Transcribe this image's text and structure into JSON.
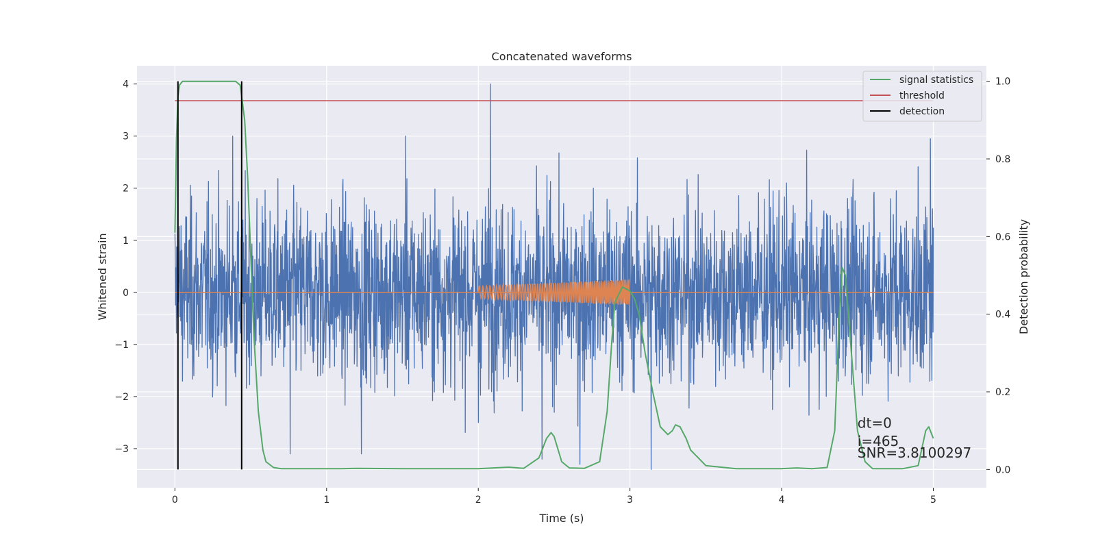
{
  "chart_data": {
    "type": "line",
    "title": "Concatenated waveforms",
    "xlabel": "Time (s)",
    "ylabel": "Whitened strain",
    "ylabel_right": "Detection probability",
    "xlim": [
      -0.25,
      5.35
    ],
    "ylim": [
      -3.75,
      4.35
    ],
    "ylim_right": [
      -0.047,
      1.04
    ],
    "xticks": [
      0,
      1,
      2,
      3,
      4,
      5
    ],
    "yticks": [
      -3,
      -2,
      -1,
      0,
      1,
      2,
      3,
      4
    ],
    "yticks_right": [
      0.0,
      0.2,
      0.4,
      0.6,
      0.8,
      1.0
    ],
    "ytick_labels": [
      "−3",
      "−2",
      "−1",
      "0",
      "1",
      "2",
      "3",
      "4"
    ],
    "yticks_right_labels": [
      "0.0",
      "0.2",
      "0.4",
      "0.6",
      "0.8",
      "1.0"
    ],
    "grid": true,
    "legend_position": "top-right",
    "colors": {
      "strain": "#4c72b0",
      "template": "#dd8452",
      "statistic": "#55a868",
      "threshold": "#c44e52",
      "detection": "#000000",
      "background": "#eaeaf2",
      "grid": "#ffffff"
    },
    "series": [
      {
        "name": "",
        "kind": "noise",
        "axis": "left",
        "x_range": [
          0,
          5
        ],
        "description_values": {
          "min": -3.4,
          "max": 4.0,
          "typical_amplitude": 1.0
        },
        "spikes": [
          [
            2.08,
            4.0
          ],
          [
            0.02,
            3.2
          ],
          [
            0.38,
            3.0
          ],
          [
            4.98,
            2.95
          ],
          [
            1.52,
            3.0
          ],
          [
            1.23,
            -3.1
          ],
          [
            0.76,
            -3.1
          ],
          [
            2.67,
            -3.3
          ],
          [
            3.14,
            -3.4
          ],
          [
            2.42,
            -3.2
          ],
          [
            2.0,
            -2.5
          ]
        ]
      },
      {
        "name": "",
        "kind": "chirp",
        "axis": "left",
        "x_range": [
          2,
          3
        ],
        "amplitude_start": 0.12,
        "amplitude_end": 0.25
      },
      {
        "name": "signal statistics",
        "axis": "right",
        "x": [
          0.0,
          0.01,
          0.02,
          0.03,
          0.05,
          0.1,
          0.2,
          0.3,
          0.4,
          0.43,
          0.46,
          0.48,
          0.5,
          0.52,
          0.55,
          0.58,
          0.6,
          0.65,
          0.7,
          0.8,
          1.0,
          1.1,
          1.2,
          1.5,
          2.0,
          2.2,
          2.3,
          2.4,
          2.45,
          2.48,
          2.5,
          2.55,
          2.6,
          2.7,
          2.8,
          2.85,
          2.88,
          2.9,
          2.95,
          3.0,
          3.03,
          3.06,
          3.1,
          3.15,
          3.2,
          3.25,
          3.28,
          3.3,
          3.33,
          3.37,
          3.4,
          3.5,
          3.7,
          4.0,
          4.1,
          4.2,
          4.3,
          4.35,
          4.38,
          4.4,
          4.42,
          4.45,
          4.5,
          4.55,
          4.6,
          4.7,
          4.8,
          4.9,
          4.95,
          4.97,
          5.0
        ],
        "values": [
          0.61,
          0.85,
          0.96,
          0.99,
          1.0,
          1.0,
          1.0,
          1.0,
          1.0,
          0.99,
          0.9,
          0.75,
          0.55,
          0.35,
          0.15,
          0.05,
          0.02,
          0.005,
          0.002,
          0.002,
          0.002,
          0.002,
          0.003,
          0.002,
          0.002,
          0.006,
          0.003,
          0.03,
          0.08,
          0.095,
          0.085,
          0.02,
          0.004,
          0.003,
          0.02,
          0.15,
          0.33,
          0.43,
          0.47,
          0.46,
          0.44,
          0.4,
          0.3,
          0.2,
          0.11,
          0.09,
          0.1,
          0.115,
          0.11,
          0.08,
          0.05,
          0.01,
          0.002,
          0.002,
          0.004,
          0.002,
          0.005,
          0.1,
          0.4,
          0.52,
          0.5,
          0.35,
          0.1,
          0.02,
          0.002,
          0.002,
          0.002,
          0.01,
          0.1,
          0.11,
          0.08
        ]
      },
      {
        "name": "threshold",
        "axis": "right",
        "x": [
          0,
          5
        ],
        "values": [
          0.95,
          0.95
        ]
      },
      {
        "name": "detection",
        "axis": "right",
        "vlines": [
          0.02,
          0.44
        ],
        "y_range": [
          0.0,
          1.0
        ]
      }
    ],
    "annotations": {
      "dt": "dt=0",
      "i": "i=465",
      "snr": "SNR=3.8100297"
    },
    "annotation_x": 4.5,
    "annotation_y": [
      -2.6,
      -2.95,
      -3.17
    ]
  }
}
